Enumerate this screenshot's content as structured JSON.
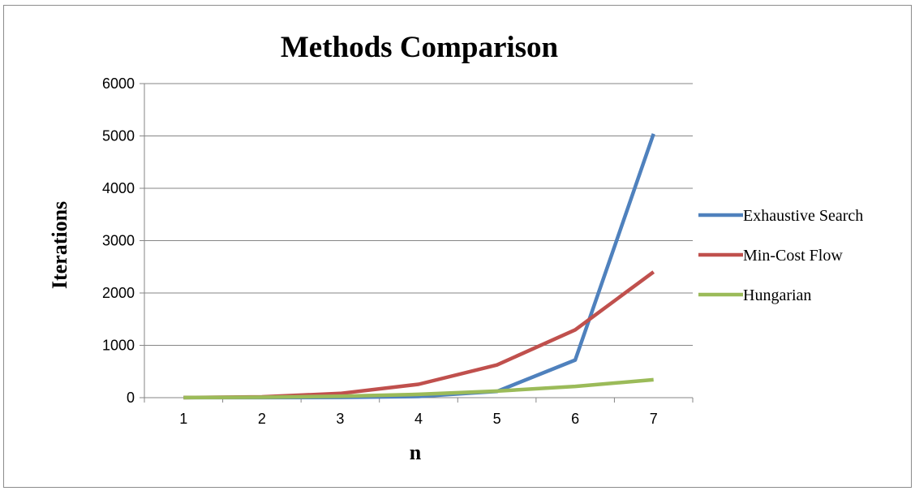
{
  "chart_data": {
    "type": "line",
    "title": "Methods Comparison",
    "xlabel": "n",
    "ylabel": "Iterations",
    "categories": [
      "1",
      "2",
      "3",
      "4",
      "5",
      "6",
      "7"
    ],
    "ylim": [
      0,
      6000
    ],
    "yticks": [
      0,
      1000,
      2000,
      3000,
      4000,
      5000,
      6000
    ],
    "grid": "horizontal",
    "legend_position": "right",
    "series": [
      {
        "name": "Exhaustive Search",
        "color": "#4f81bd",
        "values": [
          1,
          2,
          6,
          24,
          120,
          720,
          5040
        ]
      },
      {
        "name": "Min-Cost Flow",
        "color": "#c0504d",
        "values": [
          1,
          16,
          81,
          256,
          625,
          1296,
          2401
        ]
      },
      {
        "name": "Hungarian",
        "color": "#9bbb59",
        "values": [
          1,
          8,
          27,
          64,
          125,
          216,
          343
        ]
      }
    ]
  }
}
